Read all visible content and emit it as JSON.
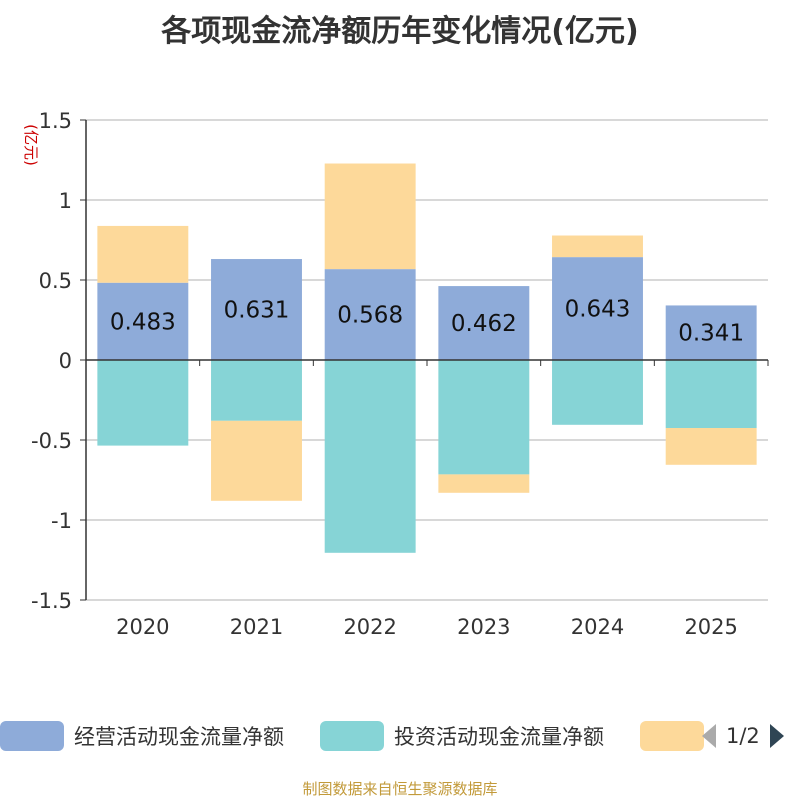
{
  "title": "各项现金流净额历年变化情况(亿元)",
  "footer": "制图数据来自恒生聚源数据库",
  "colors": {
    "operating": "#8eabd9",
    "investing": "#86d4d6",
    "financing": "#fdd99a",
    "axis": "#333333",
    "grid": "#cccccc",
    "unit": "#cc0000",
    "pager_active": "#2f4554",
    "pager_inactive": "#aaaaaa"
  },
  "legend": {
    "items": [
      {
        "label": "经营活动现金流量净额",
        "color": "#8eabd9"
      },
      {
        "label": "投资活动现金流量净额",
        "color": "#86d4d6"
      },
      {
        "label": "",
        "color": "#fdd99a"
      }
    ],
    "page": "1/2",
    "prev_icon": "triangle-left-icon",
    "next_icon": "triangle-right-icon"
  },
  "chart_data": {
    "type": "bar",
    "stacked": true,
    "unit_label": "(亿元)",
    "categories": [
      "2020",
      "2021",
      "2022",
      "2023",
      "2024",
      "2025"
    ],
    "ylim": [
      -1.5,
      1.5
    ],
    "yticks": [
      "1.5",
      "1",
      "0.5",
      "0",
      "-0.5",
      "-1",
      "-1.5"
    ],
    "ytick_values": [
      1.5,
      1,
      0.5,
      0,
      -0.5,
      -1,
      -1.5
    ],
    "grid": true,
    "legend_position": "bottom",
    "series": [
      {
        "name": "经营活动现金流量净额",
        "values": [
          0.483,
          0.631,
          0.568,
          0.462,
          0.643,
          0.341
        ],
        "data_labels": [
          "0.483",
          "0.631",
          "0.568",
          "0.462",
          "0.643",
          "0.341"
        ]
      },
      {
        "name": "投资活动现金流量净额",
        "values": [
          -0.535,
          -0.38,
          -1.205,
          -0.715,
          -0.405,
          -0.425
        ]
      },
      {
        "values": [
          0.355,
          -0.5,
          0.66,
          -0.115,
          0.135,
          -0.23
        ]
      }
    ]
  }
}
